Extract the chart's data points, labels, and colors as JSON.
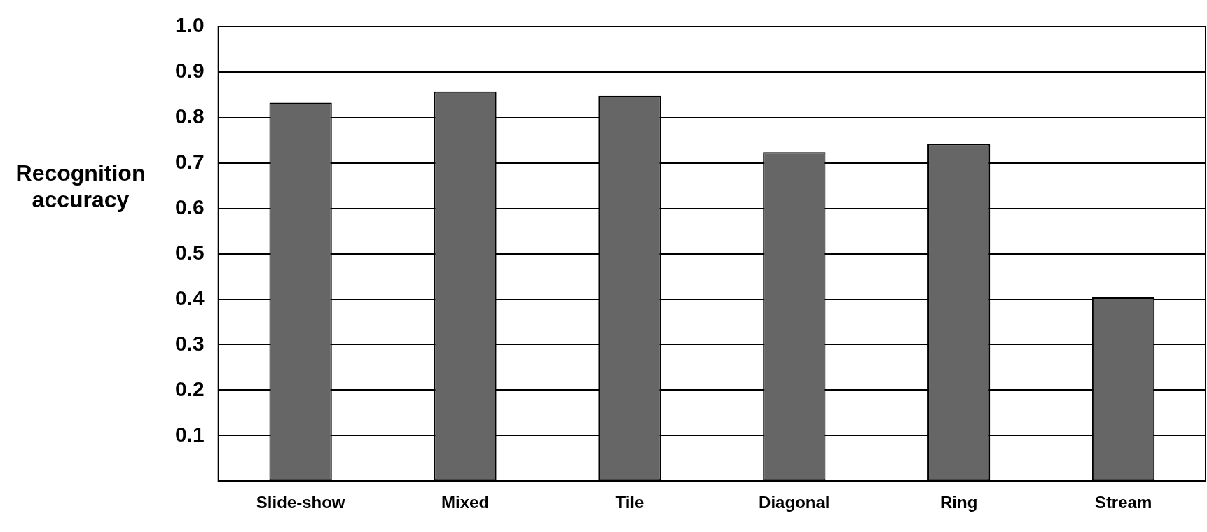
{
  "chart_data": {
    "type": "bar",
    "ylabel": "Recognition accuracy",
    "categories": [
      "Slide-show",
      "Mixed",
      "Tile",
      "Diagonal",
      "Ring",
      "Stream"
    ],
    "values": [
      0.833,
      0.857,
      0.848,
      0.724,
      0.742,
      0.404
    ],
    "color": "#666666",
    "ylim": [
      0,
      1
    ],
    "yticks": [
      0.1,
      0.2,
      0.3,
      0.4,
      0.5,
      0.6,
      0.7,
      0.8,
      0.9,
      {
        "value": 1,
        "label": "1.0"
      }
    ],
    "grid": "y",
    "legend": false
  }
}
